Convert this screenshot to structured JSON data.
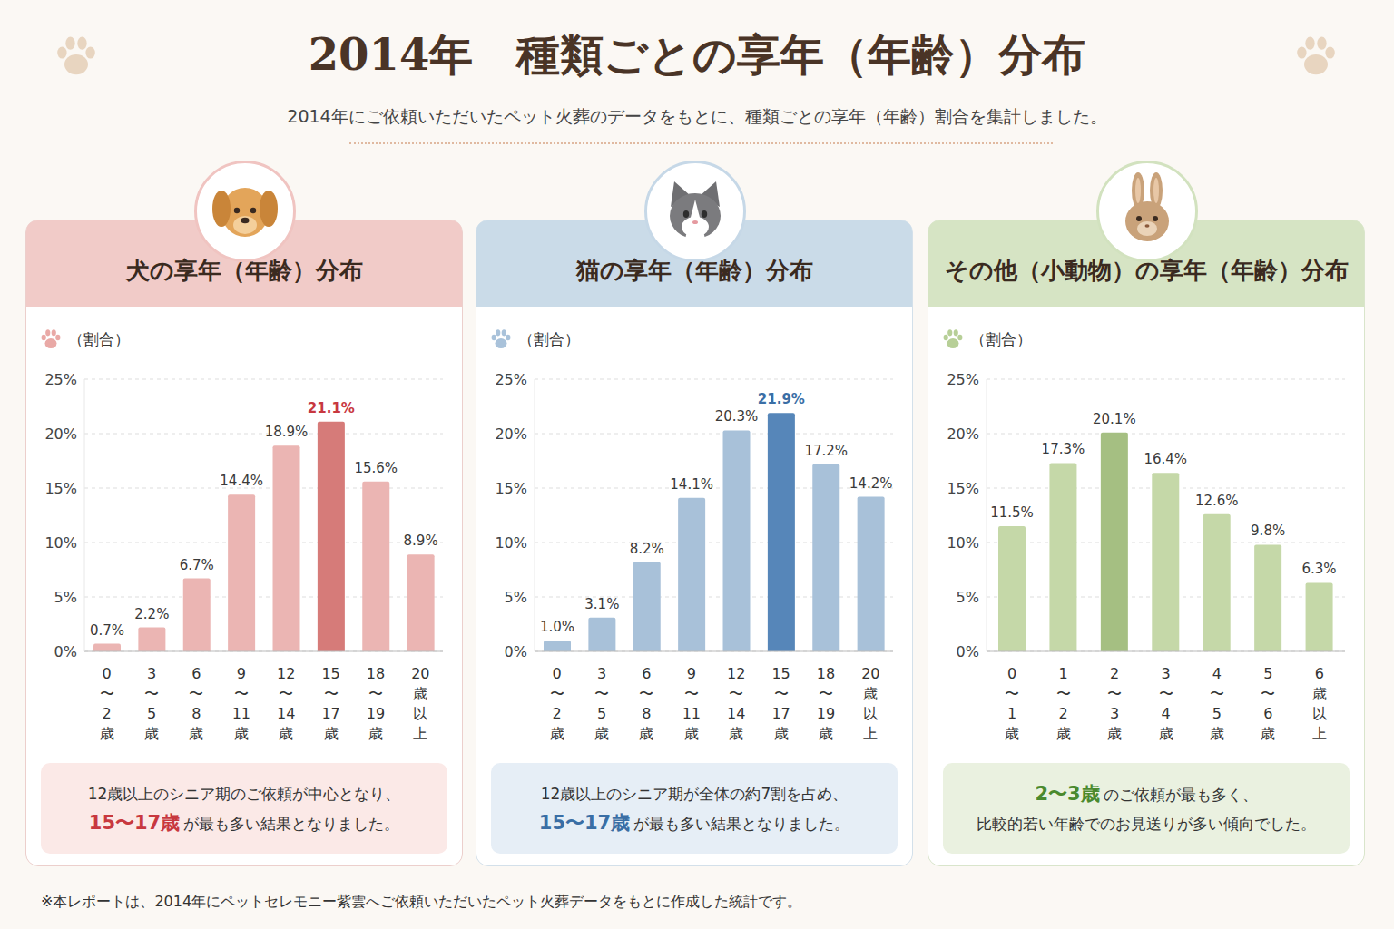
{
  "title": "2014年　種類ごとの享年（年齢）分布",
  "subtitle": "2014年にご依頼いただいたペット火葬のデータをもとに、種類ごとの享年（年齢）割合を集計しました。",
  "footnote": "※本レポートは、2014年にペットセレモニー紫雲へご依頼いただいたペット火葬データをもとに作成した統計です。",
  "chart_data": [
    {
      "type": "bar",
      "title": "犬の享年（年齢）分布",
      "y_label": "（割合）",
      "categories": [
        "0〜2歳",
        "3〜5歳",
        "6〜8歳",
        "9〜11歳",
        "12〜14歳",
        "15〜17歳",
        "18〜19歳",
        "20歳以上"
      ],
      "values": [
        0.7,
        2.2,
        6.7,
        14.4,
        18.9,
        21.1,
        15.6,
        8.9
      ],
      "value_labels": [
        "0.7%",
        "2.2%",
        "6.7%",
        "14.4%",
        "18.9%",
        "21.1%",
        "15.6%",
        "8.9%"
      ],
      "colors": [
        "#ebb5b3",
        "#ebb5b3",
        "#ebb5b3",
        "#ebb5b3",
        "#ebb5b3",
        "#d67b79",
        "#ebb5b3",
        "#ebb5b3"
      ],
      "ylim": [
        0,
        25
      ],
      "yticks": [
        {
          "value": 0,
          "label": "0%"
        },
        {
          "value": 5,
          "label": "5%"
        },
        {
          "value": 10,
          "label": "10%"
        },
        {
          "value": 15,
          "label": "15%"
        },
        {
          "value": 20,
          "label": "20%"
        },
        {
          "value": 25,
          "label": "25%"
        }
      ],
      "grid": true,
      "data_labels": true,
      "annotation": [
        [
          {
            "text": "12歳以上のシニア期のご依頼が中心となり、"
          }
        ],
        [
          {
            "text": "15〜17歳",
            "color": "#c8383f"
          },
          {
            "text": "が最も多い結果となりました。"
          }
        ]
      ]
    },
    {
      "type": "bar",
      "title": "猫の享年（年齢）分布",
      "y_label": "（割合）",
      "categories": [
        "0〜2歳",
        "3〜5歳",
        "6〜8歳",
        "9〜11歳",
        "12〜14歳",
        "15〜17歳",
        "18〜19歳",
        "20歳以上"
      ],
      "values": [
        1.0,
        3.1,
        8.2,
        14.1,
        20.3,
        21.9,
        17.2,
        14.2
      ],
      "value_labels": [
        "1.0%",
        "3.1%",
        "8.2%",
        "14.1%",
        "20.3%",
        "21.9%",
        "17.2%",
        "14.2%"
      ],
      "colors": [
        "#a8c1d9",
        "#a8c1d9",
        "#a8c1d9",
        "#a8c1d9",
        "#a8c1d9",
        "#5686b9",
        "#a8c1d9",
        "#a8c1d9"
      ],
      "ylim": [
        0,
        25
      ],
      "yticks": [
        {
          "value": 0,
          "label": "0%"
        },
        {
          "value": 5,
          "label": "5%"
        },
        {
          "value": 10,
          "label": "10%"
        },
        {
          "value": 15,
          "label": "15%"
        },
        {
          "value": 20,
          "label": "20%"
        },
        {
          "value": 25,
          "label": "25%"
        }
      ],
      "grid": true,
      "data_labels": true,
      "annotation": [
        [
          {
            "text": "12歳以上のシニア期が全体の約7割を占め、"
          }
        ],
        [
          {
            "text": "15〜17歳",
            "color": "#3a6ea5"
          },
          {
            "text": "が最も多い結果となりました。"
          }
        ]
      ]
    },
    {
      "type": "bar",
      "title": "その他（小動物）の享年（年齢）分布",
      "y_label": "（割合）",
      "categories": [
        "0〜1歳",
        "1〜2歳",
        "2〜3歳",
        "3〜4歳",
        "4〜5歳",
        "5〜6歳",
        "6歳以上"
      ],
      "values": [
        11.5,
        17.3,
        20.1,
        16.4,
        12.6,
        9.8,
        6.3
      ],
      "value_labels": [
        "11.5%",
        "17.3%",
        "20.1%",
        "16.4%",
        "12.6%",
        "9.8%",
        "6.3%"
      ],
      "colors": [
        "#c5d8a8",
        "#c5d8a8",
        "#a5bf82",
        "#c5d8a8",
        "#c5d8a8",
        "#c5d8a8",
        "#c5d8a8"
      ],
      "ylim": [
        0,
        25
      ],
      "yticks": [
        {
          "value": 0,
          "label": "0%"
        },
        {
          "value": 5,
          "label": "5%"
        },
        {
          "value": 10,
          "label": "10%"
        },
        {
          "value": 15,
          "label": "15%"
        },
        {
          "value": 20,
          "label": "20%"
        },
        {
          "value": 25,
          "label": "25%"
        }
      ],
      "grid": true,
      "data_labels": true,
      "annotation": [
        [
          {
            "text": "2〜3歳",
            "color": "#4a8a2e"
          },
          {
            "text": "のご依頼が最も多く、"
          }
        ],
        [
          {
            "text": "比較的若い年齢でのお見送りが多い傾向でした。"
          }
        ]
      ]
    }
  ]
}
